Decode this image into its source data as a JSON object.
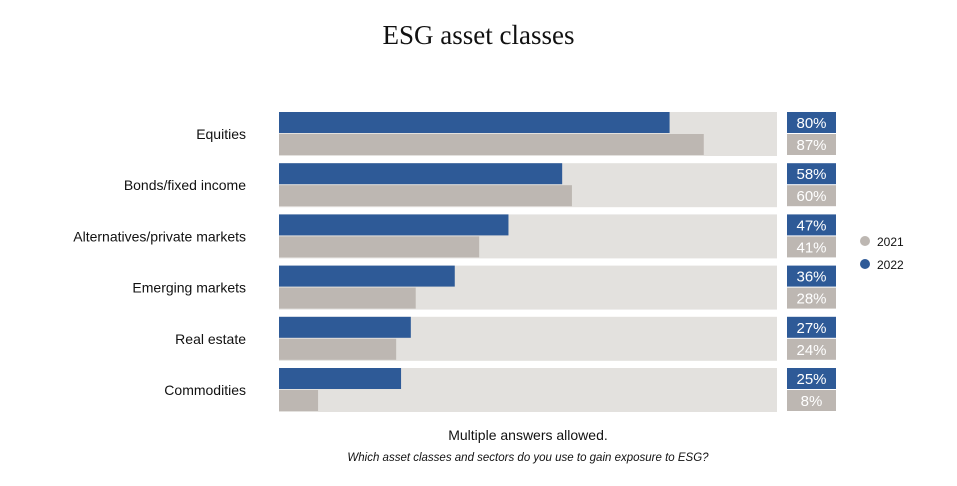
{
  "chart_data": {
    "type": "bar",
    "title": "ESG asset classes",
    "categories": [
      "Equities",
      "Bonds/fixed income",
      "Alternatives/private markets",
      "Emerging markets",
      "Real estate",
      "Commodities"
    ],
    "series": [
      {
        "name": "2022",
        "values": [
          80,
          58,
          47,
          36,
          27,
          25
        ],
        "color": "#2e5a97"
      },
      {
        "name": "2021",
        "values": [
          87,
          60,
          41,
          28,
          24,
          8
        ],
        "color": "#bdb7b2"
      }
    ],
    "value_labels": {
      "2022": [
        "80%",
        "58%",
        "47%",
        "36%",
        "27%",
        "25%"
      ],
      "2021": [
        "87%",
        "60%",
        "41%",
        "28%",
        "24%",
        "8%"
      ]
    },
    "legend": {
      "position": "right",
      "order": [
        "2021",
        "2022"
      ]
    },
    "track_color": "#e3e1de",
    "xlim": [
      0,
      102
    ],
    "notes": [
      "Multiple answers allowed.",
      "Which asset classes and sectors do you use to gain exposure to ESG?"
    ]
  }
}
